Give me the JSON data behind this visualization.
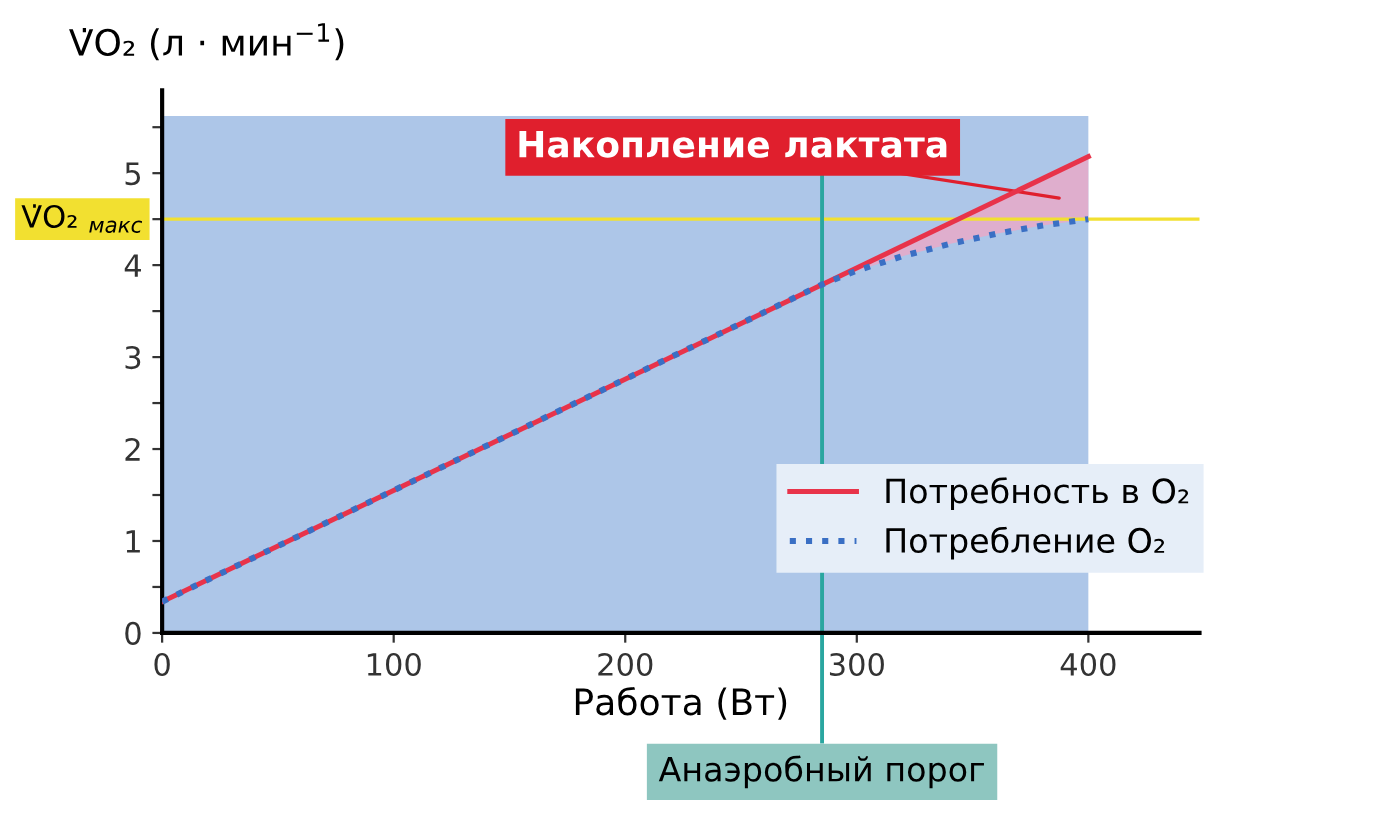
{
  "chart_data": {
    "type": "line",
    "xlabel": "Работа (Вт)",
    "ylabel": "V̇O₂ (л · мин$^{−1}$)",
    "xlim": [
      0,
      448
    ],
    "ylim": [
      0,
      5.9
    ],
    "xticks": [
      0,
      100,
      200,
      300,
      400
    ],
    "yticks": [
      0,
      {
        "value": 0.5,
        "label": null
      },
      1,
      {
        "value": 1.5,
        "label": null
      },
      2,
      {
        "value": 2.5,
        "label": null
      },
      3,
      {
        "value": 3.5,
        "label": null
      },
      4,
      {
        "value": 4.5,
        "label": null
      },
      5,
      {
        "value": 5.5,
        "label": null
      }
    ],
    "series": [
      {
        "name": "Потребность в O₂",
        "color": "#e8334a",
        "line_style": "solid",
        "x": [
          0,
          400
        ],
        "values": [
          0.34,
          5.18
        ]
      },
      {
        "name": "Потребление O₂",
        "color": "#3a6fc4",
        "line_style": "dotted",
        "x": [
          0,
          285,
          300,
          320,
          340,
          360,
          380,
          400
        ],
        "values": [
          0.34,
          3.79,
          3.94,
          4.1,
          4.23,
          4.34,
          4.43,
          4.5
        ]
      },
      {
        "type": "area",
        "color": "#e8a9c8",
        "x": [
          285,
          300,
          320,
          340,
          360,
          380,
          400
        ],
        "values": [
          3.79,
          3.97,
          4.21,
          4.45,
          4.7,
          4.94,
          5.18
        ]
      }
    ],
    "ref_lines": [
      {
        "axis": "y",
        "value": 4.5,
        "label": "V̇O₂ $_{макс}$",
        "color": "#f2e030"
      },
      {
        "axis": "x",
        "value": 285,
        "label": "Анаэробный порог",
        "color": "#2aa6a0"
      }
    ],
    "bands": [
      {
        "axis": "x",
        "from": 0,
        "to": 400,
        "color": "#adc6e8"
      }
    ],
    "annotations": [
      "Накопление лактата"
    ],
    "legend": "lower right",
    "grid": false
  }
}
